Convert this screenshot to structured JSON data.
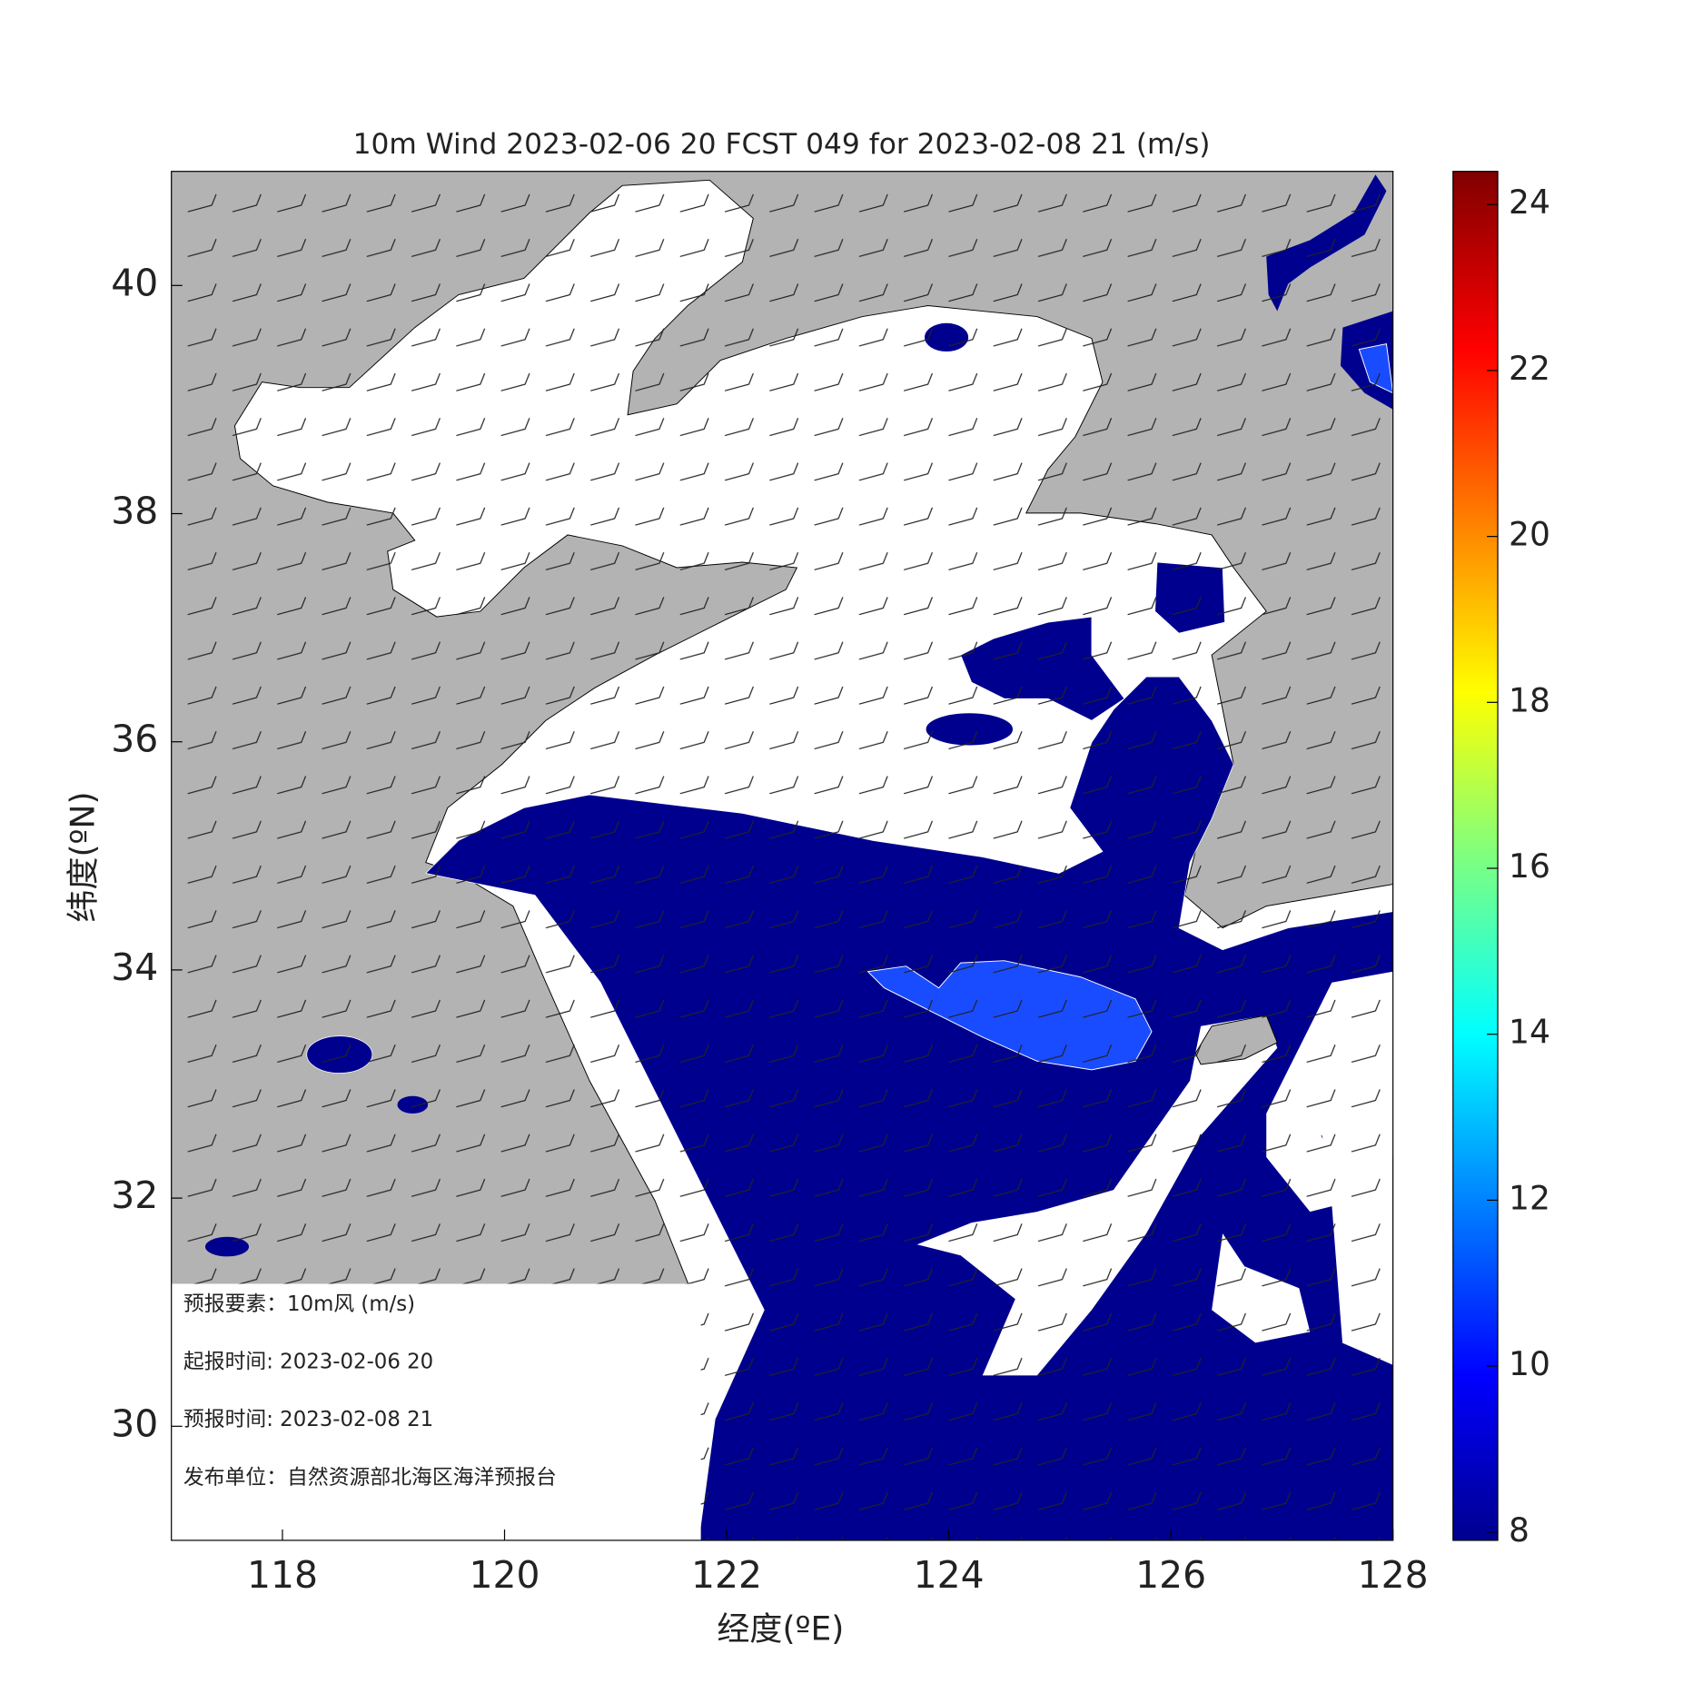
{
  "chart_data": {
    "type": "map",
    "title": "10m Wind 2023-02-06 20 FCST 049 for 2023-02-08 21 (m/s)",
    "x_label": "经度(ºE)",
    "y_label": "纬度(ºN)",
    "xlim": [
      117,
      128
    ],
    "xticks": [
      118,
      120,
      122,
      124,
      126,
      128
    ],
    "ylim": [
      29,
      41
    ],
    "yticks": [
      30,
      32,
      34,
      36,
      38,
      40
    ],
    "colorbar": {
      "lim": [
        7.9,
        24.4
      ],
      "ticks": [
        8,
        10,
        12,
        14,
        16,
        18,
        20,
        22,
        24
      ]
    }
  },
  "info_box": {
    "lines": [
      "预报要素：10m风  (m/s)",
      "起报时间: 2023-02-06 20",
      "预报时间: 2023-02-08 21",
      "发布单位：自然资源部北海区海洋预报台"
    ]
  }
}
